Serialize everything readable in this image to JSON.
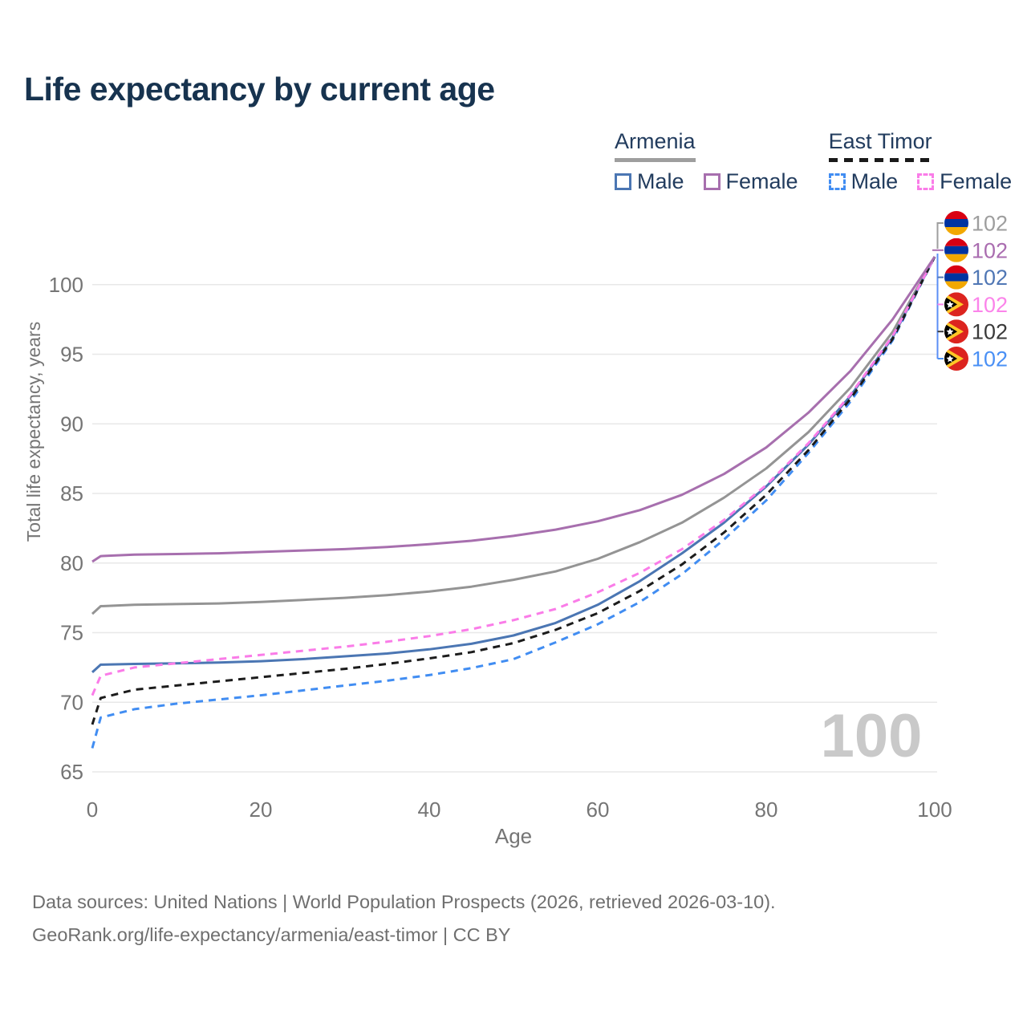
{
  "title": "Life expectancy by current age",
  "watermark_age": "100",
  "legend": {
    "groups": [
      {
        "name": "Armenia",
        "line_style": "solid",
        "line_color": "#9e9e9e",
        "items": [
          {
            "label": "Male",
            "color": "#4b76b3",
            "dashed": false
          },
          {
            "label": "Female",
            "color": "#a76fae",
            "dashed": false
          }
        ]
      },
      {
        "name": "East Timor",
        "line_style": "dashed",
        "line_color": "#1a1a1a",
        "items": [
          {
            "label": "Male",
            "color": "#418df2",
            "dashed": true
          },
          {
            "label": "Female",
            "color": "#fa7ce8",
            "dashed": true
          }
        ]
      }
    ]
  },
  "chart_data": {
    "type": "line",
    "title": "Life expectancy by current age",
    "xlabel": "Age",
    "ylabel": "Total life expectancy, years",
    "xlim": [
      0,
      100
    ],
    "ylim": [
      64.5,
      103
    ],
    "x_ticks": [
      0,
      20,
      40,
      60,
      80,
      100
    ],
    "y_ticks": [
      65,
      70,
      75,
      80,
      85,
      90,
      95,
      100
    ],
    "grid": "horizontal-only",
    "legend_position": "top-right",
    "x": [
      0,
      1,
      5,
      10,
      15,
      20,
      25,
      30,
      35,
      40,
      45,
      50,
      55,
      60,
      65,
      70,
      75,
      80,
      85,
      90,
      95,
      100
    ],
    "series": [
      {
        "name": "Armenia Total",
        "country": "Armenia",
        "group": "Total",
        "color": "#949494",
        "dashed": false,
        "end_value": 102,
        "values": [
          76.35,
          76.9,
          77.0,
          77.05,
          77.1,
          77.2,
          77.35,
          77.5,
          77.7,
          77.95,
          78.3,
          78.8,
          79.4,
          80.3,
          81.5,
          82.9,
          84.7,
          86.8,
          89.4,
          92.6,
          96.6,
          102
        ]
      },
      {
        "name": "Armenia Female",
        "country": "Armenia",
        "group": "Female",
        "color": "#a76fae",
        "dashed": false,
        "end_value": 102,
        "values": [
          80.1,
          80.5,
          80.6,
          80.65,
          80.7,
          80.8,
          80.9,
          81.0,
          81.15,
          81.35,
          81.6,
          81.95,
          82.4,
          83.0,
          83.8,
          84.9,
          86.4,
          88.3,
          90.8,
          93.8,
          97.5,
          102
        ]
      },
      {
        "name": "Armenia Male",
        "country": "Armenia",
        "group": "Male",
        "color": "#4b76b3",
        "dashed": false,
        "end_value": 102,
        "values": [
          72.15,
          72.7,
          72.75,
          72.8,
          72.85,
          72.95,
          73.1,
          73.3,
          73.5,
          73.8,
          74.2,
          74.8,
          75.7,
          77.0,
          78.7,
          80.7,
          82.9,
          85.5,
          88.5,
          92.0,
          96.2,
          102
        ]
      },
      {
        "name": "East Timor Male",
        "country": "East Timor",
        "group": "Male",
        "color": "#418df2",
        "dashed": true,
        "end_value": 102,
        "values": [
          66.7,
          68.9,
          69.5,
          69.9,
          70.2,
          70.5,
          70.85,
          71.2,
          71.55,
          71.95,
          72.45,
          73.1,
          74.3,
          75.6,
          77.2,
          79.2,
          81.7,
          84.5,
          87.9,
          91.6,
          96.0,
          102
        ]
      },
      {
        "name": "East Timor Total",
        "country": "East Timor",
        "group": "Total",
        "color": "#1c1c1c",
        "dashed": true,
        "end_value": 102,
        "values": [
          68.4,
          70.3,
          70.9,
          71.2,
          71.5,
          71.8,
          72.1,
          72.4,
          72.75,
          73.15,
          73.6,
          74.25,
          75.2,
          76.4,
          78.0,
          79.9,
          82.2,
          84.9,
          88.1,
          91.8,
          96.1,
          102
        ]
      },
      {
        "name": "East Timor Female",
        "country": "East Timor",
        "group": "Female",
        "color": "#fa7ce8",
        "dashed": true,
        "end_value": 102,
        "values": [
          70.5,
          71.9,
          72.5,
          72.8,
          73.1,
          73.4,
          73.7,
          74.0,
          74.35,
          74.75,
          75.25,
          75.9,
          76.7,
          77.9,
          79.3,
          81.0,
          83.1,
          85.6,
          88.6,
          92.1,
          96.3,
          102
        ]
      }
    ],
    "end_labels": [
      {
        "flag": "armenia",
        "label": "102",
        "color": "#9e9e9e",
        "series": "Armenia Total"
      },
      {
        "flag": "armenia",
        "label": "102",
        "color": "#aa6db0",
        "series": "Armenia Female"
      },
      {
        "flag": "armenia",
        "label": "102",
        "color": "#5077b5",
        "series": "Armenia Male"
      },
      {
        "flag": "east-timor",
        "label": "102",
        "color": "#fb84ea",
        "series": "East Timor Female"
      },
      {
        "flag": "east-timor",
        "label": "102",
        "color": "#3a3a3a",
        "series": "East Timor Total"
      },
      {
        "flag": "east-timor",
        "label": "102",
        "color": "#4a90f5",
        "series": "East Timor Male"
      }
    ]
  },
  "footer": {
    "line1": "Data sources: United Nations | World Population Prospects (2026, retrieved 2026-03-10).",
    "line2": "GeoRank.org/life-expectancy/armenia/east-timor | CC BY"
  }
}
